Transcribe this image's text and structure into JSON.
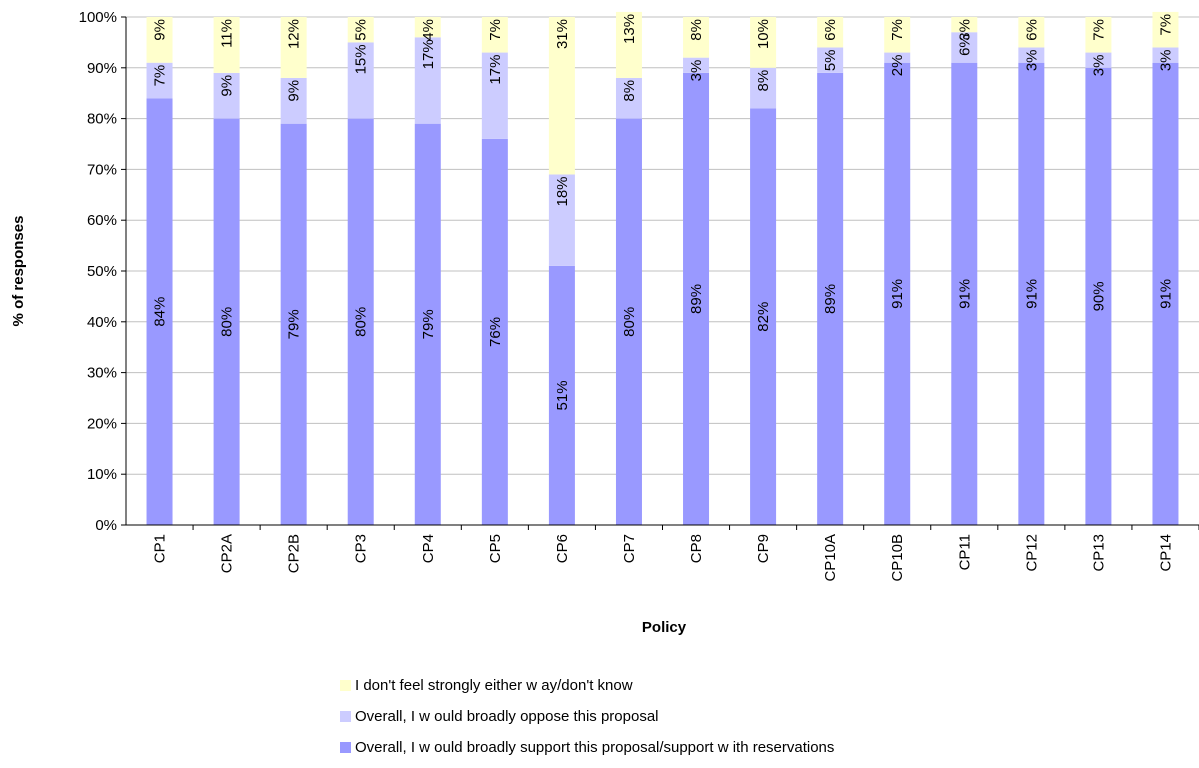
{
  "chart_data": {
    "type": "bar",
    "stacked": true,
    "percent": true,
    "xlabel": "Policy",
    "ylabel": "% of responses",
    "ylim": [
      0,
      100
    ],
    "yticks": [
      "0%",
      "10%",
      "20%",
      "30%",
      "40%",
      "50%",
      "60%",
      "70%",
      "80%",
      "90%",
      "100%"
    ],
    "grid": true,
    "legend_position": "bottom",
    "categories": [
      "CP1",
      "CP2A",
      "CP2B",
      "CP3",
      "CP4",
      "CP5",
      "CP6",
      "CP7",
      "CP8",
      "CP9",
      "CP10A",
      "CP10B",
      "CP11",
      "CP12",
      "CP13",
      "CP14"
    ],
    "series": [
      {
        "name": "Overall, I w ould broadly support this proposal/support w ith reservations",
        "color": "#9999ff",
        "values": [
          84,
          80,
          79,
          80,
          79,
          76,
          51,
          80,
          89,
          82,
          89,
          91,
          91,
          91,
          90,
          91
        ]
      },
      {
        "name": "Overall, I w ould broadly oppose this proposal",
        "color": "#ccccff",
        "values": [
          7,
          9,
          9,
          15,
          17,
          17,
          18,
          8,
          3,
          8,
          5,
          2,
          6,
          3,
          3,
          3
        ]
      },
      {
        "name": "I don't feel strongly either w ay/don't know",
        "color": "#ffffcc",
        "values": [
          9,
          11,
          12,
          5,
          4,
          7,
          31,
          13,
          8,
          10,
          6,
          7,
          3,
          6,
          7,
          7
        ]
      }
    ]
  },
  "legend_order": [
    2,
    1,
    0
  ]
}
